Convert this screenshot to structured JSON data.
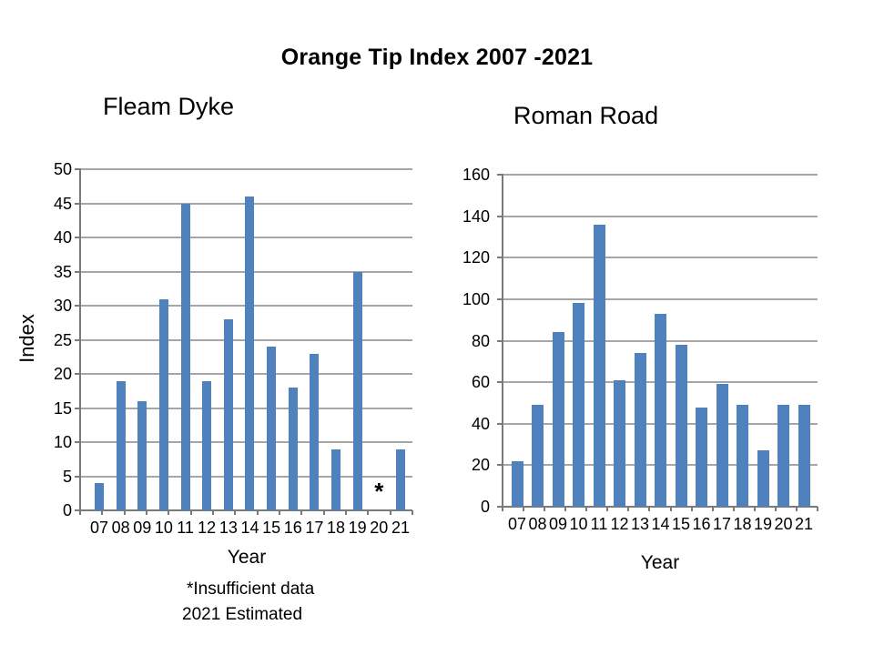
{
  "page_title": "Orange Tip Index 2007 -2021",
  "footnote": {
    "line1": "*Insufficient  data",
    "line2": "2021 Estimated"
  },
  "colors": {
    "bar": "#4f81bd",
    "gridline": "#a6a6a6",
    "axis": "#7a7a7a",
    "text": "#000000"
  },
  "chart_data": [
    {
      "type": "bar",
      "title": "Fleam Dyke",
      "xlabel": "Year",
      "ylabel": "Index",
      "categories": [
        "07",
        "08",
        "09",
        "10",
        "11",
        "12",
        "13",
        "14",
        "15",
        "16",
        "17",
        "18",
        "19",
        "20",
        "21"
      ],
      "values": [
        4,
        19,
        16,
        31,
        45,
        19,
        28,
        46,
        24,
        18,
        23,
        9,
        35,
        null,
        9
      ],
      "ylim": [
        0,
        50
      ],
      "ytick_step": 5,
      "grid": true,
      "legend": false,
      "annotations": [
        {
          "text": "*",
          "category": "20"
        }
      ]
    },
    {
      "type": "bar",
      "title": "Roman Road",
      "xlabel": "Year",
      "ylabel": "",
      "categories": [
        "07",
        "08",
        "09",
        "10",
        "11",
        "12",
        "13",
        "14",
        "15",
        "16",
        "17",
        "18",
        "19",
        "20",
        "21"
      ],
      "values": [
        22,
        49,
        84,
        98,
        136,
        61,
        74,
        93,
        78,
        48,
        59,
        49,
        27,
        49,
        49
      ],
      "ylim": [
        0,
        160
      ],
      "ytick_step": 20,
      "grid": true,
      "legend": false,
      "annotations": []
    }
  ]
}
